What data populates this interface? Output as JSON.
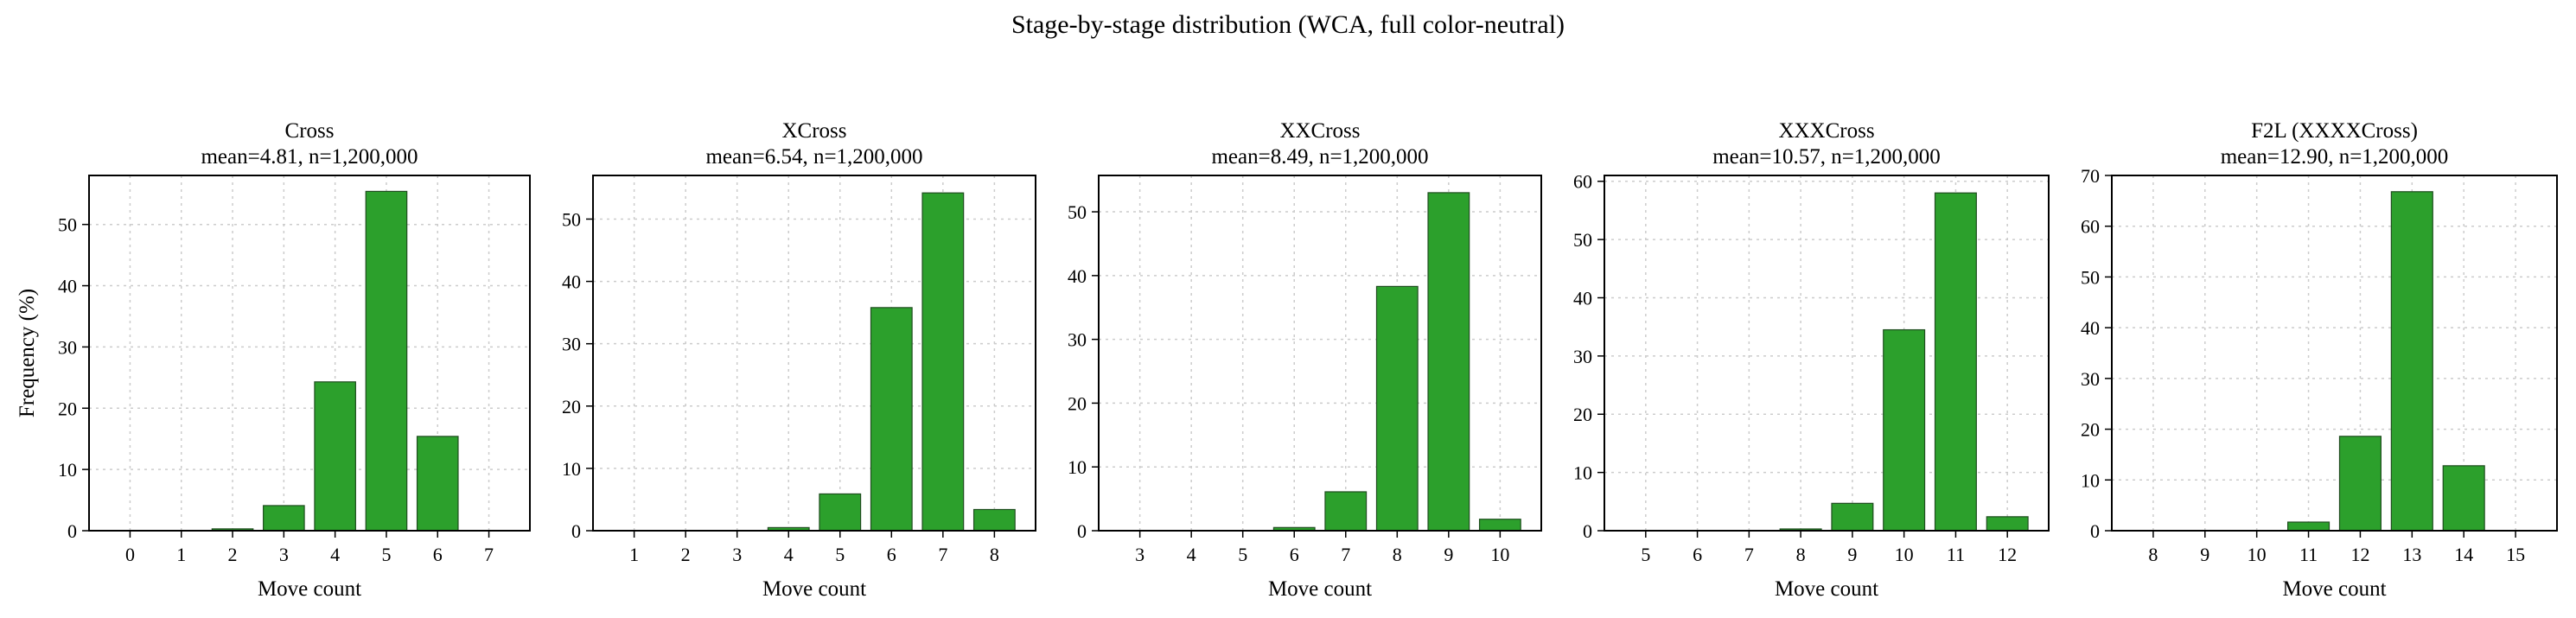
{
  "figure": {
    "title": "Stage-by-stage distribution (WCA, full color-neutral)"
  },
  "colors": {
    "bar_fill": "#2ca02c",
    "bar_edge": "#1f4d1f",
    "grid": "#cccccc"
  },
  "chart_data": [
    {
      "type": "bar",
      "title": "Cross",
      "subtitle": "mean=4.81, n=1,200,000",
      "xlabel": "Move count",
      "ylabel": "Frequency (%)",
      "categories": [
        0,
        1,
        2,
        3,
        4,
        5,
        6,
        7
      ],
      "values": [
        0.0,
        0.0,
        0.3,
        4.1,
        24.3,
        55.4,
        15.4,
        0.0
      ],
      "ylim": [
        0,
        58
      ],
      "yticks": [
        0,
        10,
        20,
        30,
        40,
        50
      ],
      "grid": true
    },
    {
      "type": "bar",
      "title": "XCross",
      "subtitle": "mean=6.54, n=1,200,000",
      "xlabel": "Move count",
      "ylabel": "",
      "categories": [
        1,
        2,
        3,
        4,
        5,
        6,
        7,
        8
      ],
      "values": [
        0.0,
        0.0,
        0.05,
        0.5,
        5.9,
        35.8,
        54.2,
        3.4
      ],
      "ylim": [
        0,
        57
      ],
      "yticks": [
        0,
        10,
        20,
        30,
        40,
        50
      ],
      "grid": true
    },
    {
      "type": "bar",
      "title": "XXCross",
      "subtitle": "mean=8.49, n=1,200,000",
      "xlabel": "Move count",
      "ylabel": "",
      "categories": [
        3,
        4,
        5,
        6,
        7,
        8,
        9,
        10
      ],
      "values": [
        0.0,
        0.0,
        0.05,
        0.5,
        6.1,
        38.3,
        53.0,
        1.8
      ],
      "ylim": [
        0,
        55.7
      ],
      "yticks": [
        0,
        10,
        20,
        30,
        40,
        50
      ],
      "grid": true
    },
    {
      "type": "bar",
      "title": "XXXCross",
      "subtitle": "mean=10.57, n=1,200,000",
      "xlabel": "Move count",
      "ylabel": "",
      "categories": [
        5,
        6,
        7,
        8,
        9,
        10,
        11,
        12
      ],
      "values": [
        0.0,
        0.0,
        0.0,
        0.3,
        4.7,
        34.5,
        58.0,
        2.4
      ],
      "ylim": [
        0,
        61
      ],
      "yticks": [
        0,
        10,
        20,
        30,
        40,
        50,
        60
      ],
      "grid": true
    },
    {
      "type": "bar",
      "title": "F2L (XXXXCross)",
      "subtitle": "mean=12.90, n=1,200,000",
      "xlabel": "Move count",
      "ylabel": "",
      "categories": [
        8,
        9,
        10,
        11,
        12,
        13,
        14,
        15
      ],
      "values": [
        0.0,
        0.0,
        0.0,
        1.7,
        18.6,
        66.8,
        12.8,
        0.0
      ],
      "ylim": [
        0,
        70
      ],
      "yticks": [
        0,
        10,
        20,
        30,
        40,
        50,
        60,
        70
      ],
      "grid": true
    }
  ]
}
